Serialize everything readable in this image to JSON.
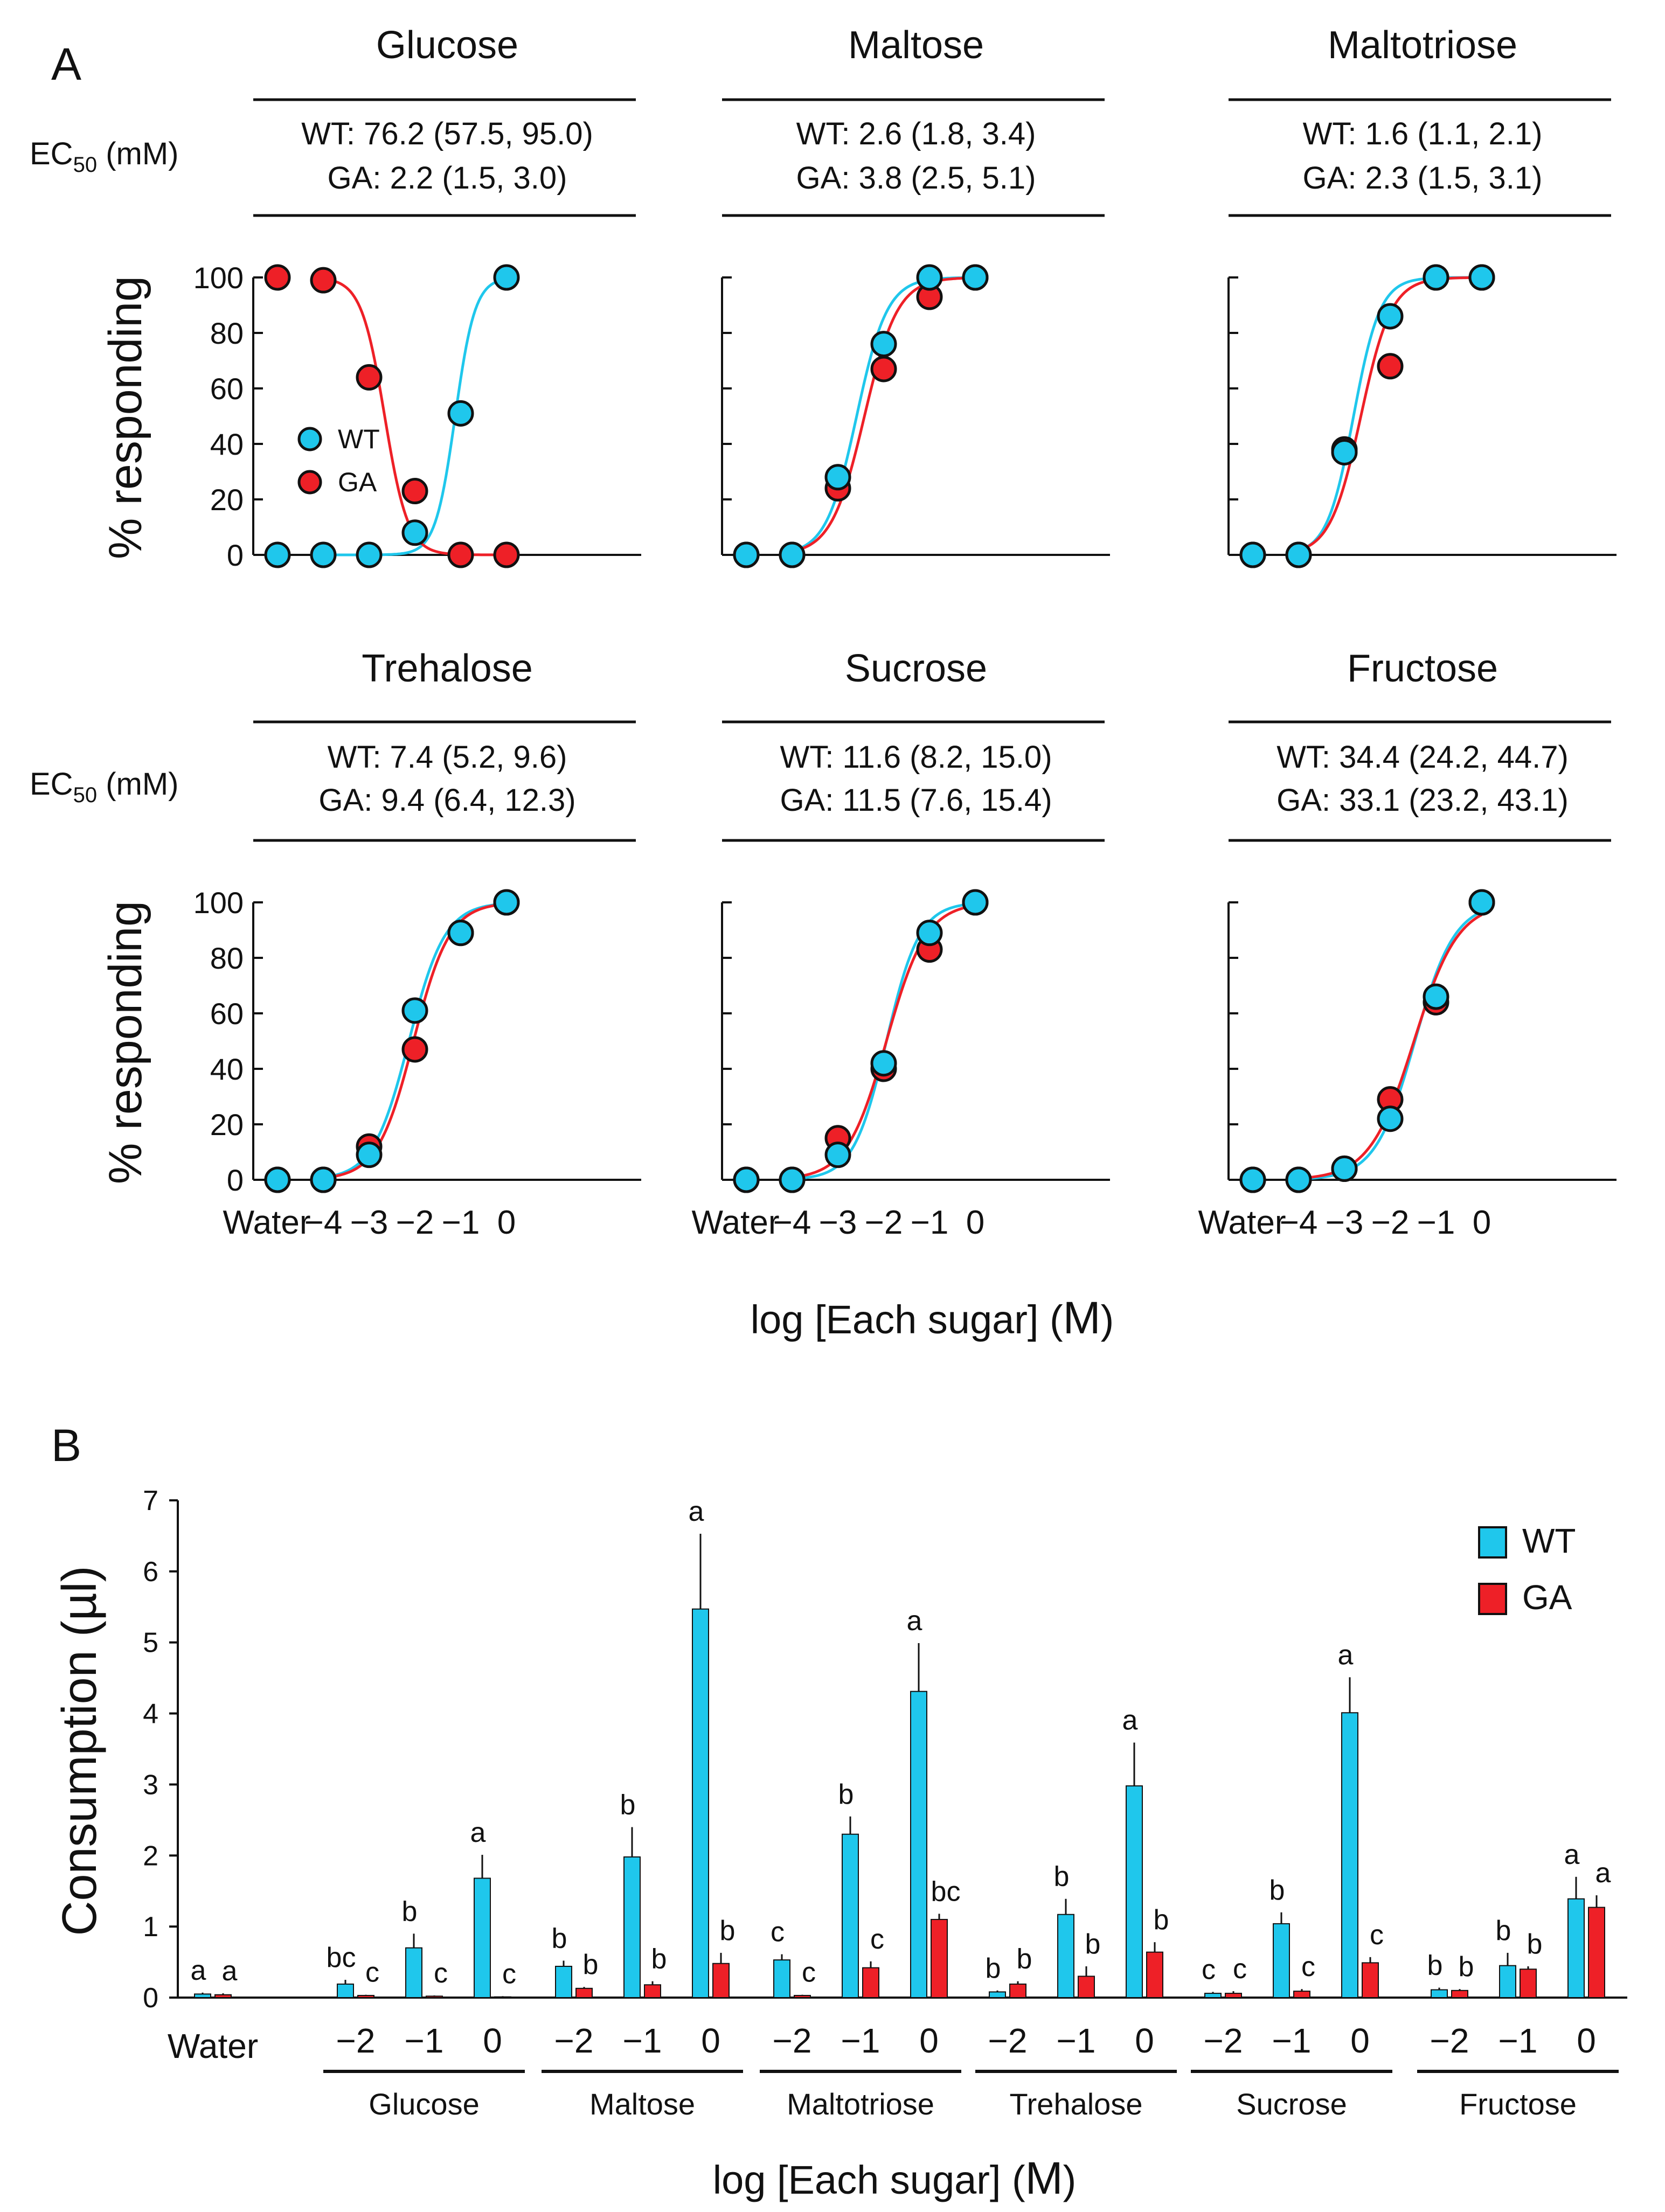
{
  "panel_a": {
    "label": "A",
    "ec50_label": "EC",
    "ec50_sub": "50",
    "ec50_unit": " (mM)",
    "ylabel": "% responding",
    "xlabel": "log [Each sugar] (",
    "xlabel_unit": "M",
    "xlabel_close": ")",
    "yticks": [
      "0",
      "20",
      "40",
      "60",
      "80",
      "100"
    ],
    "xticks": [
      "Water",
      "−4",
      "−3",
      "−2",
      "−1",
      "0"
    ],
    "legend": [
      "WT",
      "GA"
    ]
  },
  "panel_b": {
    "label": "B",
    "ylabel": "Consumption (µl)",
    "xlabel": "log [Each sugar] (",
    "xlabel_unit": "M",
    "xlabel_close": ")",
    "yticks": [
      "0",
      "1",
      "2",
      "3",
      "4",
      "5",
      "6",
      "7"
    ],
    "water_label": "Water",
    "legend": [
      "WT",
      "GA"
    ]
  },
  "colors": {
    "wt": "#1fc7ec",
    "ga": "#ee2027",
    "outline": "#111111"
  },
  "chart_data": [
    {
      "type": "scatter",
      "title": "Glucose",
      "ec50": {
        "wt": "WT: 76.2 (57.5, 95.0)",
        "ga": "GA:   2.2 (1.5, 3.0)"
      },
      "x": [
        "Water",
        -4,
        -3,
        -2,
        -1,
        0
      ],
      "ylim": [
        0,
        100
      ],
      "ylabel": "% responding",
      "series": [
        {
          "name": "WT",
          "values": [
            0,
            0,
            0,
            8,
            51,
            100
          ],
          "ec50_log": -1.12,
          "hill": 2.0
        },
        {
          "name": "GA",
          "values": [
            100,
            99,
            64,
            23,
            0,
            0
          ],
          "ec50_log": -2.66,
          "hill": -1.7
        }
      ]
    },
    {
      "type": "scatter",
      "title": "Maltose",
      "ec50": {
        "wt": "WT: 2.6 (1.8, 3.4)",
        "ga": "GA: 3.8 (2.5, 5.1)"
      },
      "x": [
        "Water",
        -4,
        -3,
        -2,
        -1,
        0
      ],
      "ylim": [
        0,
        100
      ],
      "series": [
        {
          "name": "WT",
          "values": [
            0,
            0,
            28,
            76,
            100,
            100
          ],
          "ec50_log": -2.59,
          "hill": 1.3
        },
        {
          "name": "GA",
          "values": [
            0,
            0,
            24,
            67,
            93,
            100
          ],
          "ec50_log": -2.42,
          "hill": 1.2
        }
      ]
    },
    {
      "type": "scatter",
      "title": "Maltotriose",
      "ec50": {
        "wt": "WT: 1.6 (1.1, 2.1)",
        "ga": "GA: 2.3 (1.5, 3.1)"
      },
      "x": [
        "Water",
        -4,
        -3,
        -2,
        -1,
        0
      ],
      "ylim": [
        0,
        100
      ],
      "series": [
        {
          "name": "WT",
          "values": [
            0,
            0,
            37,
            86,
            100,
            100
          ],
          "ec50_log": -2.8,
          "hill": 1.5
        },
        {
          "name": "GA",
          "values": [
            0,
            0,
            38,
            68,
            100,
            100
          ],
          "ec50_log": -2.64,
          "hill": 1.3
        }
      ]
    },
    {
      "type": "scatter",
      "title": "Trehalose",
      "ec50": {
        "wt": "WT: 7.4 (5.2, 9.6)",
        "ga": "GA: 9.4 (6.4, 12.3)"
      },
      "x": [
        "Water",
        -4,
        -3,
        -2,
        -1,
        0
      ],
      "ylim": [
        0,
        100
      ],
      "series": [
        {
          "name": "WT",
          "values": [
            0,
            0,
            9,
            61,
            89,
            100
          ],
          "ec50_log": -2.13,
          "hill": 1.1
        },
        {
          "name": "GA",
          "values": [
            0,
            0,
            12,
            47,
            89,
            100
          ],
          "ec50_log": -2.03,
          "hill": 1.1
        }
      ]
    },
    {
      "type": "scatter",
      "title": "Sucrose",
      "ec50": {
        "wt": "WT: 11.6 (8.2, 15.0)",
        "ga": "GA: 11.5 (7.6, 15.4)"
      },
      "x": [
        "Water",
        -4,
        -3,
        -2,
        -1,
        0
      ],
      "ylim": [
        0,
        100
      ],
      "series": [
        {
          "name": "WT",
          "values": [
            0,
            0,
            9,
            42,
            89,
            100
          ],
          "ec50_log": -1.94,
          "hill": 1.2
        },
        {
          "name": "GA",
          "values": [
            0,
            0,
            15,
            40,
            83,
            100
          ],
          "ec50_log": -1.94,
          "hill": 1.0
        }
      ]
    },
    {
      "type": "scatter",
      "title": "Fructose",
      "ec50": {
        "wt": "WT: 34.4 (24.2, 44.7)",
        "ga": "GA: 33.1 (23.2, 43.1)"
      },
      "x": [
        "Water",
        -4,
        -3,
        -2,
        -1,
        0
      ],
      "ylim": [
        0,
        100
      ],
      "series": [
        {
          "name": "WT",
          "values": [
            0,
            0,
            4,
            22,
            66,
            100
          ],
          "ec50_log": -1.46,
          "hill": 1.0
        },
        {
          "name": "GA",
          "values": [
            0,
            0,
            4,
            29,
            64,
            100
          ],
          "ec50_log": -1.48,
          "hill": 0.9
        }
      ]
    },
    {
      "type": "bar",
      "title": "",
      "ylabel": "Consumption (µl)",
      "xlabel": "log [Each sugar] (M)",
      "ylim": [
        0,
        7
      ],
      "groups": [
        {
          "name": "Water",
          "categories": [
            ""
          ],
          "wt": [
            0.05
          ],
          "wt_err": [
            0.02
          ],
          "ga": [
            0.04
          ],
          "ga_err": [
            0.02
          ],
          "wt_letters": [
            "a"
          ],
          "ga_letters": [
            "a"
          ]
        },
        {
          "name": "Glucose",
          "categories": [
            "−2",
            "−1",
            "0"
          ],
          "wt": [
            0.19,
            0.7,
            1.68
          ],
          "wt_err": [
            0.06,
            0.2,
            0.33
          ],
          "ga": [
            0.03,
            0.02,
            0.01
          ],
          "ga_err": [
            0.01,
            0.01,
            0.01
          ],
          "wt_letters": [
            "bc",
            "b",
            "a"
          ],
          "ga_letters": [
            "c",
            "c",
            "c"
          ]
        },
        {
          "name": "Maltose",
          "categories": [
            "−2",
            "−1",
            "0"
          ],
          "wt": [
            0.44,
            1.98,
            5.47
          ],
          "wt_err": [
            0.08,
            0.42,
            1.06
          ],
          "ga": [
            0.13,
            0.18,
            0.48
          ],
          "ga_err": [
            0.02,
            0.05,
            0.15
          ],
          "wt_letters": [
            "b",
            "b",
            "a"
          ],
          "ga_letters": [
            "b",
            "b",
            "b"
          ]
        },
        {
          "name": "Maltotriose",
          "categories": [
            "−2",
            "−1",
            "0"
          ],
          "wt": [
            0.53,
            2.3,
            4.31
          ],
          "wt_err": [
            0.08,
            0.25,
            0.68
          ],
          "ga": [
            0.03,
            0.42,
            1.1
          ],
          "ga_err": [
            0.01,
            0.09,
            0.08
          ],
          "wt_letters": [
            "c",
            "b",
            "a"
          ],
          "ga_letters": [
            "c",
            "c",
            "bc"
          ]
        },
        {
          "name": "Trehalose",
          "categories": [
            "−2",
            "−1",
            "0"
          ],
          "wt": [
            0.08,
            1.17,
            2.98
          ],
          "wt_err": [
            0.02,
            0.22,
            0.61
          ],
          "ga": [
            0.19,
            0.3,
            0.64
          ],
          "ga_err": [
            0.04,
            0.14,
            0.14
          ],
          "wt_letters": [
            "b",
            "b",
            "a"
          ],
          "ga_letters": [
            "b",
            "b",
            "b"
          ]
        },
        {
          "name": "Sucrose",
          "categories": [
            "−2",
            "−1",
            "0"
          ],
          "wt": [
            0.06,
            1.04,
            4.01
          ],
          "wt_err": [
            0.02,
            0.16,
            0.5
          ],
          "ga": [
            0.06,
            0.09,
            0.49
          ],
          "ga_err": [
            0.03,
            0.03,
            0.08
          ],
          "wt_letters": [
            "c",
            "b",
            "a"
          ],
          "ga_letters": [
            "c",
            "c",
            "c"
          ]
        },
        {
          "name": "Fructose",
          "categories": [
            "−2",
            "−1",
            "0"
          ],
          "wt": [
            0.11,
            0.45,
            1.39
          ],
          "wt_err": [
            0.03,
            0.18,
            0.31
          ],
          "ga": [
            0.1,
            0.4,
            1.27
          ],
          "ga_err": [
            0.02,
            0.04,
            0.17
          ],
          "wt_letters": [
            "b",
            "b",
            "a"
          ],
          "ga_letters": [
            "b",
            "b",
            "a"
          ]
        }
      ]
    }
  ]
}
